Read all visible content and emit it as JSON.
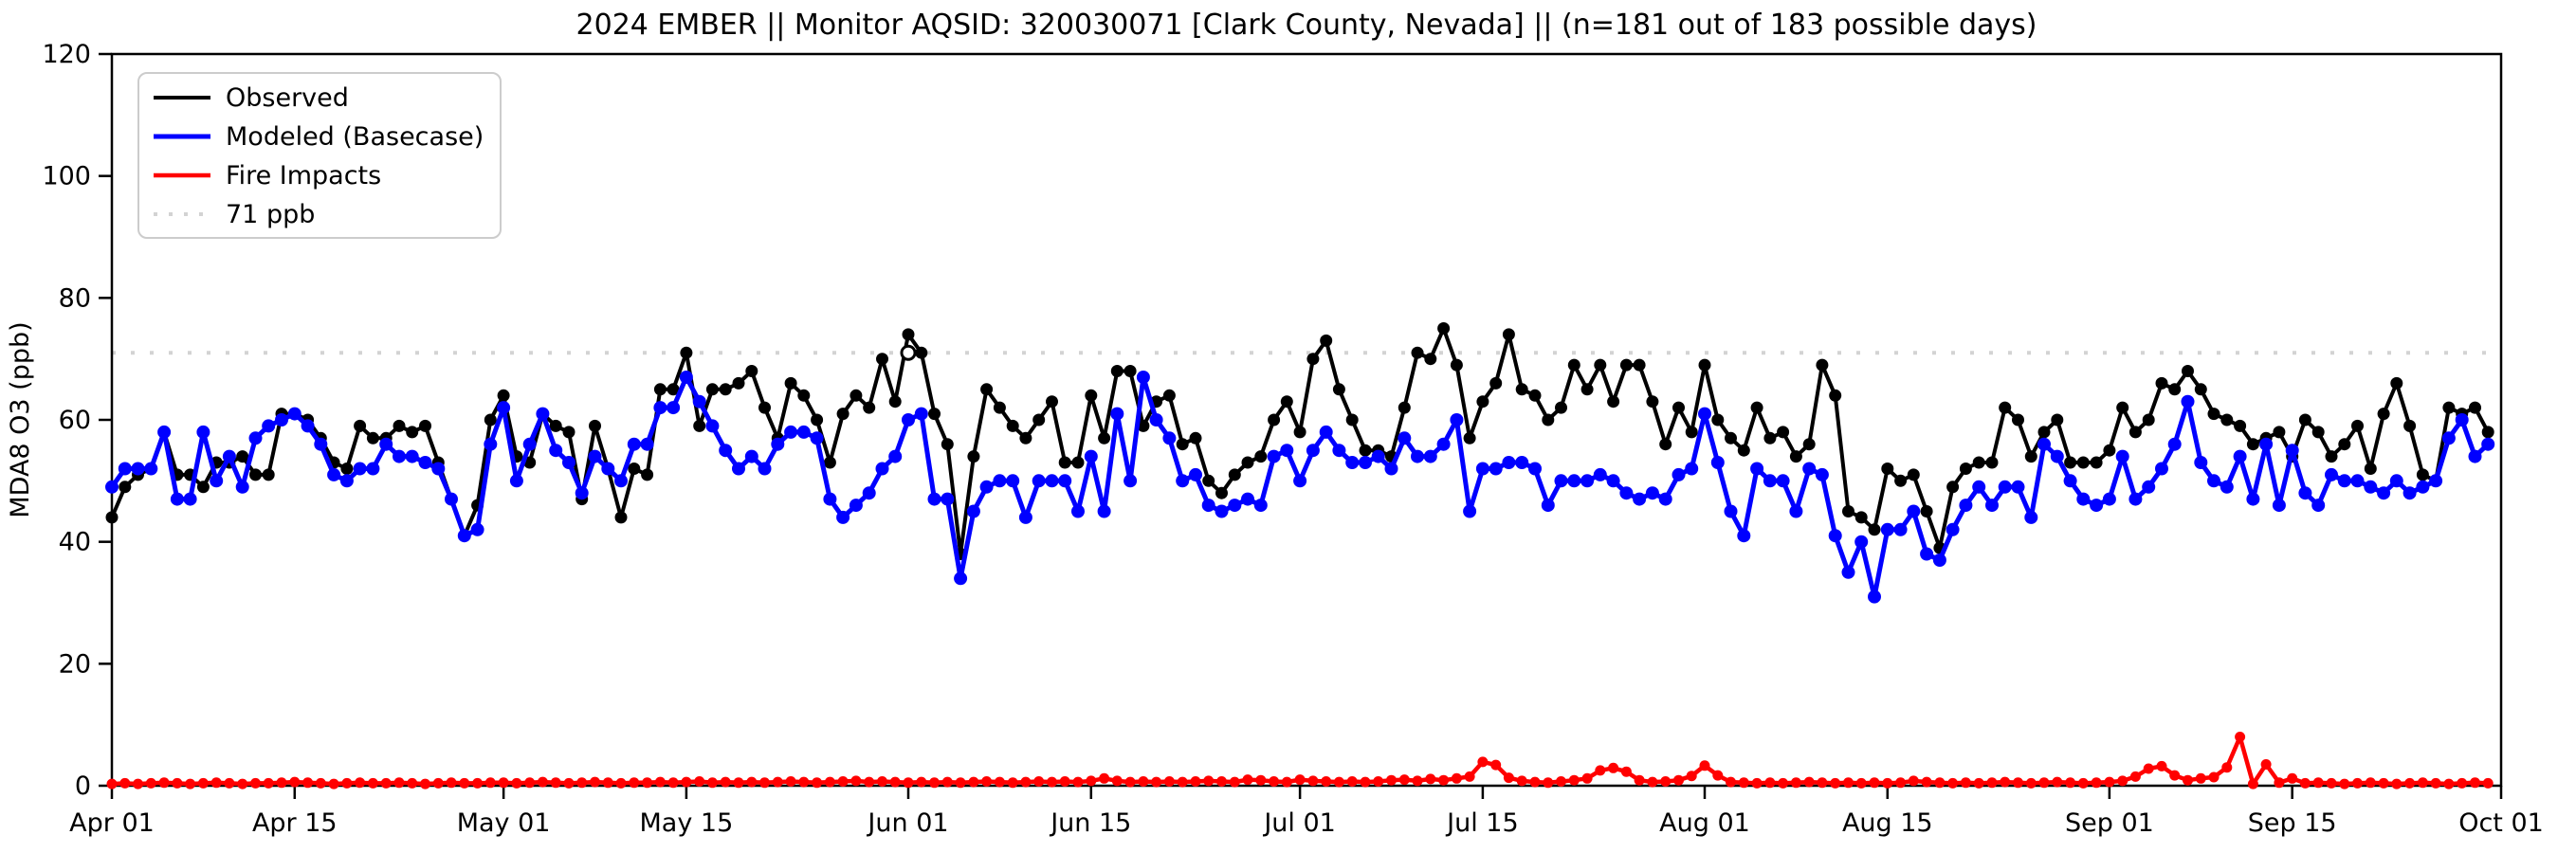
{
  "chart_data": {
    "type": "line",
    "title": "2024 EMBER || Monitor AQSID: 320030071 [Clark County, Nevada] || (n=181 out of 183 possible days)",
    "xlabel": "",
    "ylabel": "MDA8 O3 (ppb)",
    "ylim": [
      0,
      120
    ],
    "yticks": [
      0,
      20,
      40,
      60,
      80,
      100,
      120
    ],
    "x_range_days": 183,
    "x_tick_labels": [
      "Apr 01",
      "Apr 15",
      "May 01",
      "May 15",
      "Jun 01",
      "Jun 15",
      "Jul 01",
      "Jul 15",
      "Aug 01",
      "Aug 15",
      "Sep 01",
      "Sep 15",
      "Oct 01"
    ],
    "x_tick_day_index": [
      0,
      14,
      30,
      44,
      61,
      75,
      91,
      105,
      122,
      136,
      153,
      167,
      183
    ],
    "grid": false,
    "legend_position": "upper-left",
    "threshold": {
      "value": 71,
      "label": "71 ppb",
      "color": "#d3d3d3",
      "style": "dotted"
    },
    "special_markers": [
      {
        "series": "Observed",
        "day_index": 61,
        "value": 71,
        "marker": "open-circle",
        "note": "hollow marker on 71 ppb line near Jun 02"
      }
    ],
    "series": [
      {
        "name": "Observed",
        "color": "#000000",
        "values": [
          44,
          49,
          51,
          52,
          58,
          51,
          51,
          49,
          53,
          53,
          54,
          51,
          51,
          61,
          61,
          60,
          57,
          53,
          52,
          59,
          57,
          57,
          59,
          58,
          59,
          53,
          47,
          41,
          46,
          60,
          64,
          54,
          53,
          61,
          59,
          58,
          47,
          59,
          52,
          44,
          52,
          51,
          65,
          65,
          71,
          59,
          65,
          65,
          66,
          68,
          62,
          57,
          66,
          64,
          60,
          53,
          61,
          64,
          62,
          70,
          63,
          74,
          71,
          61,
          56,
          38,
          54,
          65,
          62,
          59,
          57,
          60,
          63,
          53,
          53,
          64,
          57,
          68,
          68,
          59,
          63,
          64,
          56,
          57,
          50,
          48,
          51,
          53,
          54,
          60,
          63,
          58,
          70,
          73,
          65,
          60,
          55,
          55,
          54,
          62,
          71,
          70,
          75,
          69,
          57,
          63,
          66,
          74,
          65,
          64,
          60,
          62,
          69,
          65,
          69,
          63,
          69,
          69,
          63,
          56,
          62,
          58,
          69,
          60,
          57,
          55,
          62,
          57,
          58,
          54,
          56,
          69,
          64,
          45,
          44,
          42,
          52,
          50,
          51,
          45,
          39,
          49,
          52,
          53,
          53,
          62,
          60,
          54,
          58,
          60,
          53,
          53,
          53,
          55,
          62,
          58,
          60,
          66,
          65,
          68,
          65,
          61,
          60,
          59,
          56,
          57,
          58,
          54,
          60,
          58,
          54,
          56,
          59,
          52,
          61,
          66,
          59,
          51,
          50,
          62,
          61,
          62,
          58
        ]
      },
      {
        "name": "Modeled (Basecase)",
        "color": "#0000ff",
        "values": [
          49,
          52,
          52,
          52,
          58,
          47,
          47,
          58,
          50,
          54,
          49,
          57,
          59,
          60,
          61,
          59,
          56,
          51,
          50,
          52,
          52,
          56,
          54,
          54,
          53,
          52,
          47,
          41,
          42,
          56,
          62,
          50,
          56,
          61,
          55,
          53,
          48,
          54,
          52,
          50,
          56,
          56,
          62,
          62,
          67,
          63,
          59,
          55,
          52,
          54,
          52,
          56,
          58,
          58,
          57,
          47,
          44,
          46,
          48,
          52,
          54,
          60,
          61,
          47,
          47,
          34,
          45,
          49,
          50,
          50,
          44,
          50,
          50,
          50,
          45,
          54,
          45,
          61,
          50,
          67,
          60,
          57,
          50,
          51,
          46,
          45,
          46,
          47,
          46,
          54,
          55,
          50,
          55,
          58,
          55,
          53,
          53,
          54,
          52,
          57,
          54,
          54,
          56,
          60,
          45,
          52,
          52,
          53,
          53,
          52,
          46,
          50,
          50,
          50,
          51,
          50,
          48,
          47,
          48,
          47,
          51,
          52,
          61,
          53,
          45,
          41,
          52,
          50,
          50,
          45,
          52,
          51,
          41,
          35,
          40,
          31,
          42,
          42,
          45,
          38,
          37,
          42,
          46,
          49,
          46,
          49,
          49,
          44,
          56,
          54,
          50,
          47,
          46,
          47,
          54,
          47,
          49,
          52,
          56,
          63,
          53,
          50,
          49,
          54,
          47,
          56,
          46,
          55,
          48,
          46,
          51,
          50,
          50,
          49,
          48,
          50,
          48,
          49,
          50,
          57,
          60,
          54,
          56
        ]
      },
      {
        "name": "Fire Impacts",
        "color": "#ff0000",
        "values": [
          0.3,
          0.4,
          0.3,
          0.4,
          0.5,
          0.4,
          0.3,
          0.4,
          0.5,
          0.4,
          0.3,
          0.4,
          0.4,
          0.5,
          0.6,
          0.5,
          0.4,
          0.3,
          0.4,
          0.5,
          0.4,
          0.4,
          0.5,
          0.4,
          0.3,
          0.4,
          0.5,
          0.4,
          0.4,
          0.5,
          0.5,
          0.4,
          0.5,
          0.6,
          0.5,
          0.4,
          0.5,
          0.6,
          0.5,
          0.4,
          0.5,
          0.5,
          0.6,
          0.5,
          0.6,
          0.7,
          0.5,
          0.6,
          0.5,
          0.6,
          0.5,
          0.6,
          0.7,
          0.6,
          0.5,
          0.6,
          0.7,
          0.8,
          0.6,
          0.7,
          0.6,
          0.5,
          0.6,
          0.5,
          0.6,
          0.5,
          0.6,
          0.7,
          0.6,
          0.5,
          0.6,
          0.7,
          0.6,
          0.7,
          0.6,
          0.8,
          1.2,
          0.8,
          0.6,
          0.7,
          0.6,
          0.7,
          0.6,
          0.7,
          0.8,
          0.7,
          0.6,
          1.0,
          0.9,
          0.7,
          0.6,
          1.0,
          0.8,
          0.7,
          0.6,
          0.7,
          0.6,
          0.7,
          0.9,
          1.0,
          0.8,
          1.1,
          0.9,
          1.2,
          1.5,
          3.9,
          3.4,
          1.3,
          0.8,
          0.6,
          0.5,
          0.7,
          0.9,
          1.2,
          2.5,
          2.9,
          2.3,
          0.9,
          0.6,
          0.7,
          0.9,
          1.6,
          3.3,
          1.7,
          0.6,
          0.5,
          0.4,
          0.5,
          0.4,
          0.5,
          0.6,
          0.5,
          0.4,
          0.5,
          0.4,
          0.5,
          0.4,
          0.5,
          0.8,
          0.6,
          0.5,
          0.4,
          0.5,
          0.4,
          0.5,
          0.6,
          0.5,
          0.4,
          0.5,
          0.6,
          0.5,
          0.4,
          0.5,
          0.6,
          0.8,
          1.5,
          2.8,
          3.2,
          1.7,
          0.9,
          1.2,
          1.4,
          3.0,
          8.0,
          0.3,
          3.5,
          0.5,
          1.2,
          0.4,
          0.5,
          0.4,
          0.3,
          0.4,
          0.5,
          0.4,
          0.3,
          0.4,
          0.5,
          0.4,
          0.3,
          0.4,
          0.5,
          0.4
        ]
      }
    ],
    "legend_items": [
      "Observed",
      "Modeled (Basecase)",
      "Fire Impacts",
      "71 ppb"
    ]
  },
  "figure": {
    "background": "#ffffff",
    "axis_color": "#000000"
  }
}
